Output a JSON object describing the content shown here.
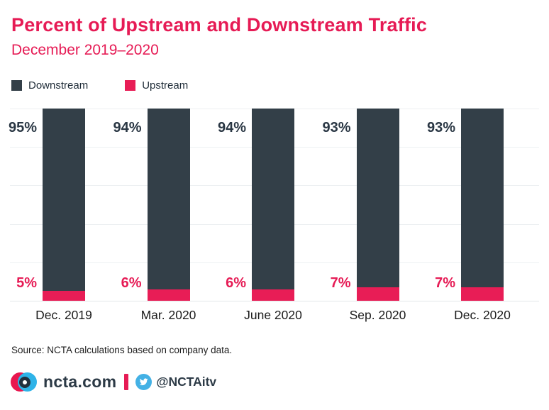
{
  "title": "Percent of Upstream and Downstream Traffic",
  "subtitle": "December 2019–2020",
  "legend": [
    {
      "label": "Downstream",
      "color": "#333F48"
    },
    {
      "label": "Upstream",
      "color": "#E81D56"
    }
  ],
  "source": "Source: NCTA calculations based on company data.",
  "footer": {
    "site": "ncta.com",
    "handle": "@NCTAitv",
    "logo_icon": "ncta-logo",
    "social_icon": "twitter-bird"
  },
  "colors": {
    "accent_pink": "#E61B55",
    "bar_downstream": "#333F48",
    "bar_upstream": "#E81D56",
    "gridline": "#EDF0F2",
    "text_dark": "#1B1B1B",
    "value_label_dark": "#2A3744",
    "twitter_blue": "#43B1E5",
    "logo_blue": "#2FB3E8",
    "logo_pink": "#E8174F",
    "logo_navy": "#22303E"
  },
  "chart_data": {
    "type": "bar",
    "stacked": true,
    "title": "Percent of Upstream and Downstream Traffic",
    "subtitle": "December 2019–2020",
    "categories": [
      "Dec. 2019",
      "Mar. 2020",
      "June 2020",
      "Sep. 2020",
      "Dec. 2020"
    ],
    "series": [
      {
        "name": "Downstream",
        "values": [
          95,
          94,
          94,
          93,
          93
        ],
        "color": "#333F48"
      },
      {
        "name": "Upstream",
        "values": [
          5,
          6,
          6,
          7,
          7
        ],
        "color": "#E81D56"
      }
    ],
    "value_labels": {
      "downstream": [
        "95%",
        "94%",
        "94%",
        "93%",
        "93%"
      ],
      "upstream": [
        "5%",
        "6%",
        "6%",
        "7%",
        "7%"
      ]
    },
    "ylim": [
      0,
      100
    ],
    "grid": true,
    "gridline_step_percent": 20,
    "legend_position": "top-left",
    "xlabel": "",
    "ylabel": ""
  }
}
